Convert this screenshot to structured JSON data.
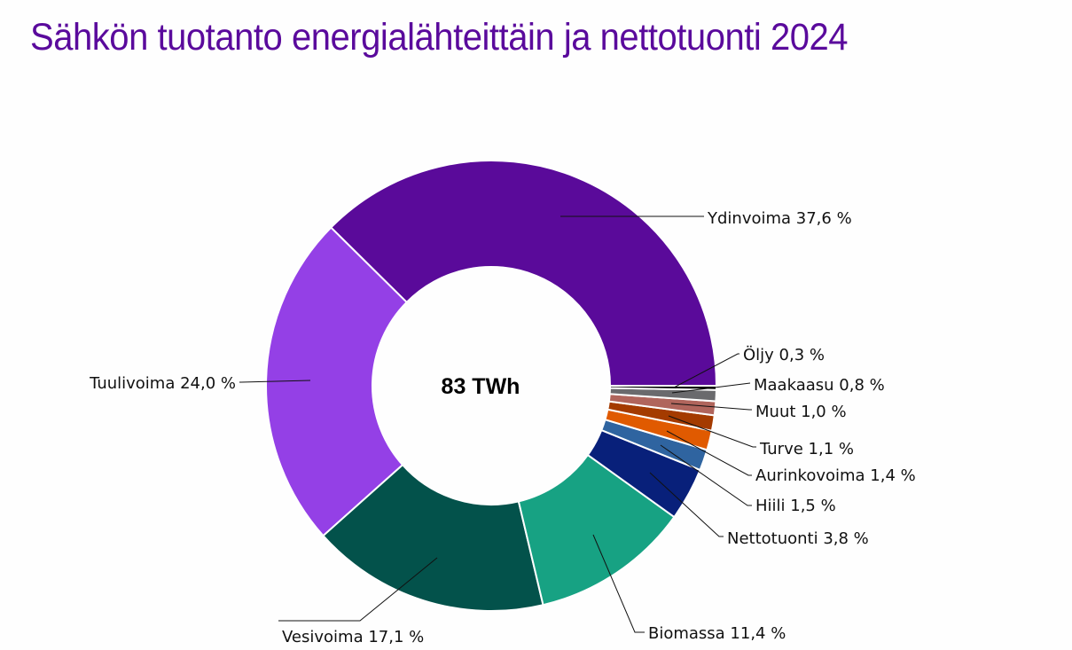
{
  "title": "Sähkön tuotanto energialähteittäin ja nettotuonti 2024",
  "center_label": "83 TWh",
  "chart_data": {
    "type": "pie",
    "subtype": "donut",
    "title": "Sähkön tuotanto energialähteittäin ja nettotuonti 2024",
    "center_text": "83 TWh",
    "unit": "%",
    "categories": [
      "Ydinvoima",
      "Tuulivoima",
      "Vesivoima",
      "Biomassa",
      "Nettotuonti",
      "Hiili",
      "Aurinkovoima",
      "Turve",
      "Muut",
      "Maakaasu",
      "Öljy"
    ],
    "values": [
      37.6,
      24.0,
      17.1,
      11.4,
      3.8,
      1.5,
      1.4,
      1.1,
      1.0,
      0.8,
      0.3
    ],
    "labels": [
      "Ydinvoima 37,6 %",
      "Tuulivoima 24,0 %",
      "Vesivoima 17,1 %",
      "Biomassa 11,4 %",
      "Nettotuonti 3,8 %",
      "Hiili 1,5 %",
      "Aurinkovoima 1,4 %",
      "Turve 1,1 %",
      "Muut 1,0 %",
      "Maakaasu 0,8 %",
      "Öljy 0,3 %"
    ],
    "colors": [
      "#5a0a9a",
      "#9440e6",
      "#03524b",
      "#17a283",
      "#08207a",
      "#2f64a0",
      "#e05a00",
      "#a43b00",
      "#b0655c",
      "#6a6a6d",
      "#000000"
    ],
    "legend": "none (leader-line data labels)"
  }
}
